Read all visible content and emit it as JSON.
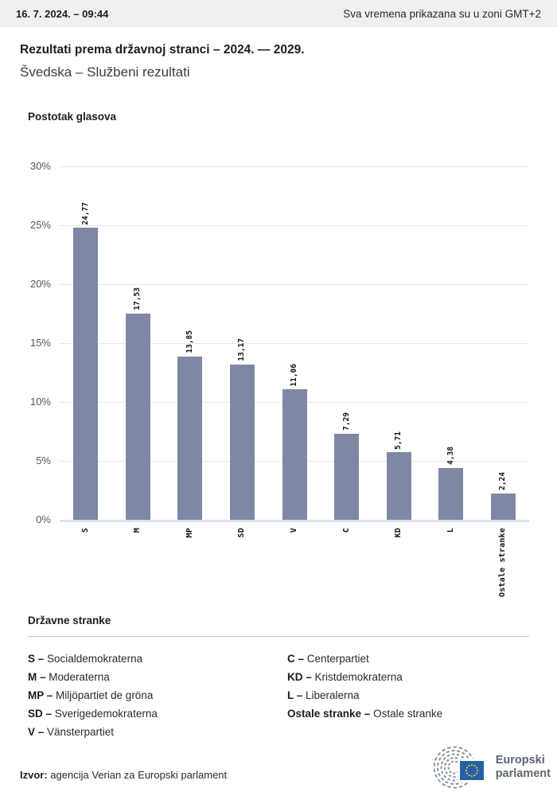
{
  "topbar": {
    "datetime": "16. 7. 2024. – 09:44",
    "timezone_note": "Sva vremena prikazana su u zoni GMT+2"
  },
  "header": {
    "title": "Rezultati prema državnoj stranci – 2024. — 2029.",
    "subtitle": "Švedska – Službeni rezultati"
  },
  "chart_data": {
    "type": "bar",
    "title": "Postotak glasova",
    "categories": [
      "S",
      "M",
      "MP",
      "SD",
      "V",
      "C",
      "KD",
      "L",
      "Ostale stranke"
    ],
    "values": [
      24.77,
      17.53,
      13.85,
      13.17,
      11.06,
      7.29,
      5.71,
      4.38,
      2.24
    ],
    "value_labels": [
      "24,77",
      "17,53",
      "13,85",
      "13,17",
      "11,06",
      "7,29",
      "5,71",
      "4,38",
      "2,24"
    ],
    "ylim": [
      0,
      30
    ],
    "yticks": [
      "30%",
      "25%",
      "20%",
      "15%",
      "10%",
      "5%",
      "0%"
    ],
    "grid": true,
    "legend_position": "none",
    "bar_color": "#7E88A4"
  },
  "legend": {
    "title": "Državne stranke",
    "separator": "–",
    "columns": [
      [
        {
          "abbr": "S",
          "name": "Socialdemokraterna"
        },
        {
          "abbr": "M",
          "name": "Moderaterna"
        },
        {
          "abbr": "MP",
          "name": "Miljöpartiet de gröna"
        },
        {
          "abbr": "SD",
          "name": "Sverigedemokraterna"
        },
        {
          "abbr": "V",
          "name": "Vänsterpartiet"
        }
      ],
      [
        {
          "abbr": "C",
          "name": "Centerpartiet"
        },
        {
          "abbr": "KD",
          "name": "Kristdemokraterna"
        },
        {
          "abbr": "L",
          "name": "Liberalerna"
        },
        {
          "abbr": "Ostale stranke",
          "name": "Ostale stranke"
        }
      ]
    ]
  },
  "footer": {
    "source_label": "Izvor:",
    "source_text": "agencija Verian za Europski parlament",
    "logo_line1": "Europski",
    "logo_line2": "parlament"
  },
  "colors": {
    "bar": "#7E88A4",
    "topbar_bg": "#F0F0F0",
    "gridline": "#E7E7E7",
    "baseline": "#DBE1F0",
    "flag_blue": "#2661A8",
    "star_yellow": "#F8D12E",
    "logo_gray": "#8B949C",
    "logo_text": "#5D6772"
  }
}
